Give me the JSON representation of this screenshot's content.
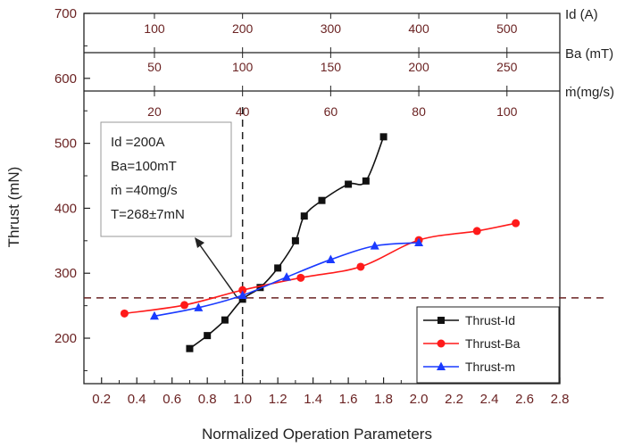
{
  "chart_data": {
    "type": "line",
    "xlabel": "Normalized Operation Parameters",
    "ylabel": "Thrust (mN)",
    "xlim": [
      0.1,
      2.8
    ],
    "ylim": [
      130,
      700
    ],
    "x_ticks": [
      "0.2",
      "0.4",
      "0.6",
      "0.8",
      "1.0",
      "1.2",
      "1.4",
      "1.6",
      "1.8",
      "2.0",
      "2.2",
      "2.4",
      "2.6",
      "2.8"
    ],
    "y_ticks": [
      "200",
      "300",
      "400",
      "500",
      "600",
      "700"
    ],
    "top_axes": [
      {
        "label": "Id (A)",
        "ticks": [
          "100",
          "200",
          "300",
          "400",
          "500"
        ]
      },
      {
        "label": "Ba (mT)",
        "ticks": [
          "50",
          "100",
          "150",
          "200",
          "250"
        ]
      },
      {
        "label": "ṁ(mg/s)",
        "ticks": [
          "20",
          "40",
          "60",
          "80",
          "100"
        ]
      }
    ],
    "series": [
      {
        "name": "Thrust-Id",
        "color": "#111111",
        "marker": "square",
        "x": [
          0.7,
          0.8,
          0.9,
          1.0,
          1.1,
          1.2,
          1.3,
          1.35,
          1.45,
          1.6,
          1.7,
          1.8
        ],
        "y": [
          184,
          204,
          228,
          260,
          278,
          308,
          350,
          388,
          412,
          437,
          442,
          510
        ]
      },
      {
        "name": "Thrust-Ba",
        "color": "#ff1a1a",
        "marker": "circle",
        "x": [
          0.33,
          0.67,
          1.0,
          1.33,
          1.67,
          2.0,
          2.33,
          2.55
        ],
        "y": [
          238,
          251,
          274,
          293,
          310,
          351,
          365,
          377
        ]
      },
      {
        "name": "Thrust-m",
        "color": "#1a3aff",
        "marker": "triangle",
        "x": [
          0.5,
          0.75,
          1.0,
          1.25,
          1.5,
          1.75,
          2.0
        ],
        "y": [
          234,
          247,
          266,
          294,
          321,
          342,
          347
        ]
      }
    ],
    "reference_lines": {
      "x": 1.0,
      "y": 262
    },
    "annotation": {
      "lines": [
        "Id =200A",
        "Ba=100mT",
        "ṁ =40mg/s",
        "T=268±7mN"
      ]
    },
    "legend_position": "bottom-right",
    "grid": false
  }
}
